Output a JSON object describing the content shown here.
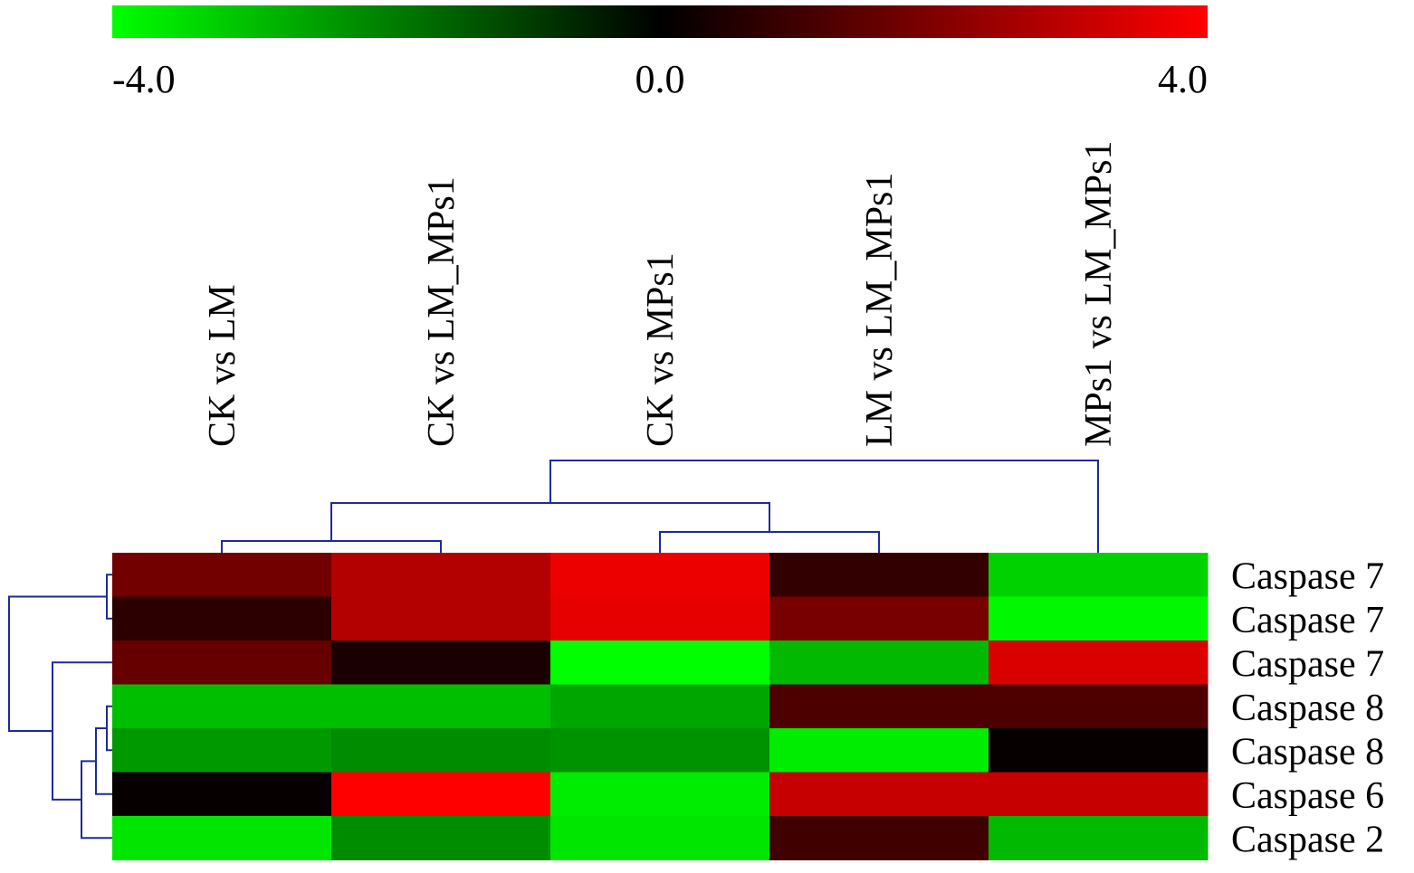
{
  "chart_data": {
    "type": "heatmap",
    "columns": [
      "CK vs LM",
      "CK vs LM_MPs1",
      "CK vs MPs1",
      "LM vs LM_MPs1",
      "MPs1 vs LM_MPs1"
    ],
    "rows": [
      "Caspase 7",
      "Caspase 7",
      "Caspase 7",
      "Caspase 8",
      "Caspase 8",
      "Caspase 6",
      "Caspase 2"
    ],
    "values": [
      [
        1.8,
        2.8,
        3.7,
        0.8,
        -3.3
      ],
      [
        0.7,
        2.8,
        3.6,
        1.9,
        -3.9
      ],
      [
        1.6,
        0.4,
        -4.0,
        -2.9,
        3.4
      ],
      [
        -3.0,
        -3.0,
        -2.6,
        1.2,
        1.2
      ],
      [
        -2.4,
        -2.2,
        -2.3,
        -3.7,
        0.1
      ],
      [
        0.1,
        4.0,
        -3.7,
        3.1,
        3.1
      ],
      [
        -3.6,
        -2.2,
        -3.6,
        1.0,
        -2.9
      ]
    ],
    "color_scale": {
      "min": -4.0,
      "mid": 0.0,
      "max": 4.0,
      "tick_labels": [
        "-4.0",
        "0.0",
        "4.0"
      ],
      "low_color": "#00ff00",
      "mid_color": "#000000",
      "high_color": "#ff0000"
    },
    "dendrogram_color": "#1e2a9a",
    "column_dendrogram": true,
    "row_dendrogram": true
  }
}
